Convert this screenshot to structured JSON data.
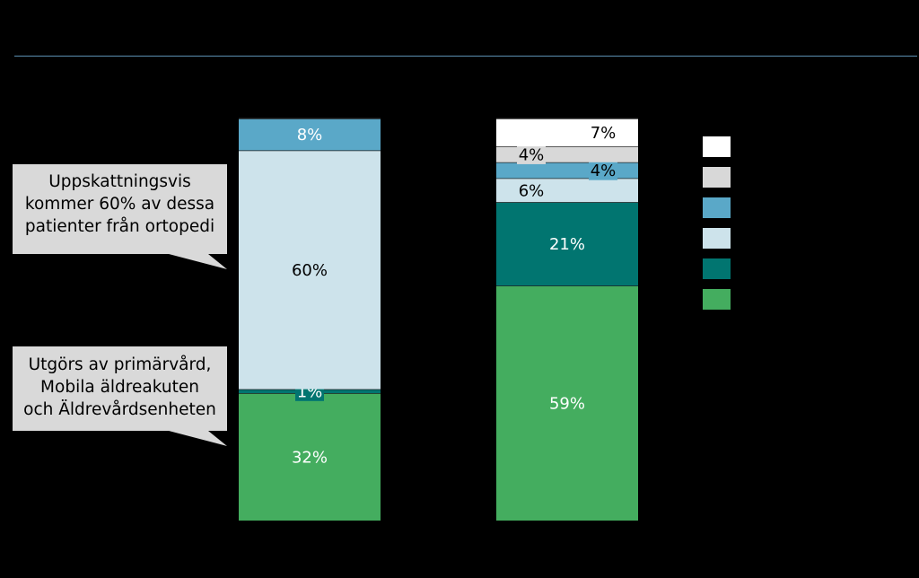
{
  "chart_data": {
    "type": "bar",
    "stacked": true,
    "categories": [
      "",
      ""
    ],
    "series": [
      {
        "values": [
          32,
          59
        ],
        "color": "#44ad5f"
      },
      {
        "values": [
          1,
          21
        ],
        "color": "#017570"
      },
      {
        "values": [
          60,
          6
        ],
        "color": "#cde3eb"
      },
      {
        "values": [
          8,
          4
        ],
        "color": "#5aa8c8"
      },
      {
        "values": [
          0,
          4
        ],
        "color": "#d8d8d8"
      },
      {
        "values": [
          0,
          7
        ],
        "color": "#ffffff"
      }
    ],
    "data_labels": [
      [
        "32%",
        "1%",
        "60%",
        "8%",
        "",
        ""
      ],
      [
        "59%",
        "21%",
        "6%",
        "4%",
        "4%",
        "7%"
      ]
    ],
    "legend_position": "right",
    "ylim": [
      0,
      101
    ]
  },
  "callouts": [
    {
      "lines": [
        "Uppskattningsvis",
        "kommer 60% av dessa",
        "patienter från ortopedi"
      ]
    },
    {
      "lines": [
        "Utgörs av primärvård,",
        "Mobila äldreakuten",
        "och Äldrevårdsenheten"
      ]
    }
  ]
}
